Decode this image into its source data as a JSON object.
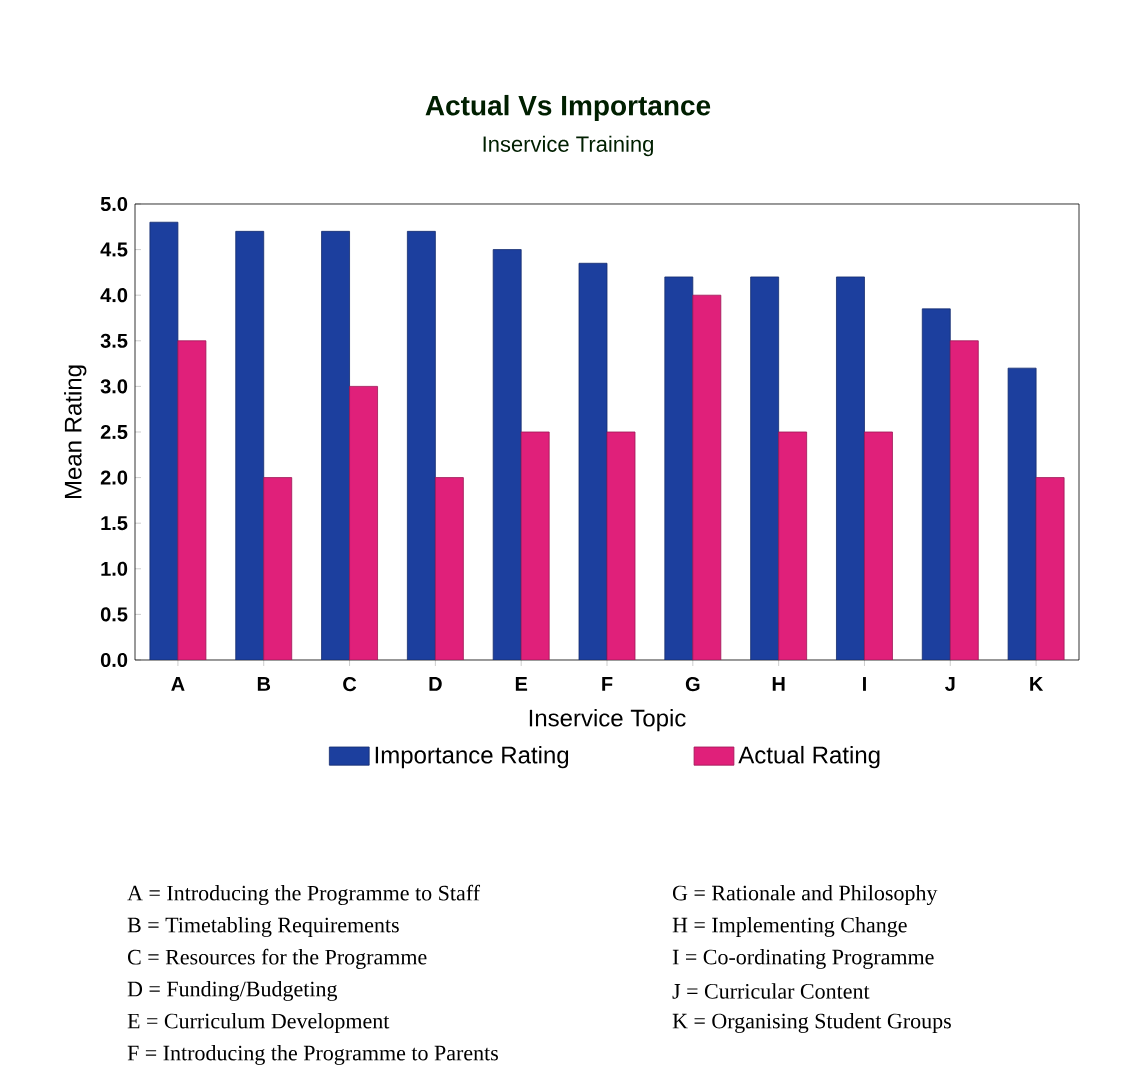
{
  "chart_data": {
    "type": "bar",
    "title": "Actual Vs Importance",
    "subtitle": "Inservice Training",
    "xlabel": "Inservice Topic",
    "ylabel": "Mean Rating",
    "categories": [
      "A",
      "B",
      "C",
      "D",
      "E",
      "F",
      "G",
      "H",
      "I",
      "J",
      "K"
    ],
    "series": [
      {
        "name": "Importance Rating",
        "color": "#1c3f9e",
        "values": [
          4.8,
          4.7,
          4.7,
          4.7,
          4.5,
          4.35,
          4.2,
          4.2,
          4.2,
          3.85,
          3.2
        ]
      },
      {
        "name": "Actual Rating",
        "color": "#e0207a",
        "values": [
          3.5,
          2.0,
          3.0,
          2.0,
          2.5,
          2.5,
          4.0,
          2.5,
          2.5,
          3.5,
          2.0
        ]
      }
    ],
    "ylim": [
      0,
      5
    ],
    "yticks": [
      {
        "value": 0,
        "label": "0.0"
      },
      {
        "value": 0.5,
        "label": "0.5"
      },
      {
        "value": 1,
        "label": "1.0"
      },
      {
        "value": 1.5,
        "label": "1.5"
      },
      {
        "value": 2,
        "label": "2.0"
      },
      {
        "value": 2.5,
        "label": "2.5"
      },
      {
        "value": 3,
        "label": "3.0"
      },
      {
        "value": 3.5,
        "label": "3.5"
      },
      {
        "value": 4,
        "label": "4.0"
      },
      {
        "value": 4.5,
        "label": "4.5"
      },
      {
        "value": 5,
        "label": "5.0"
      }
    ],
    "grid": false,
    "legend": "bottom",
    "annotations": [
      "A = Introducing the Programme to Staff",
      "B = Timetabling Requirements",
      "C = Resources for the Programme",
      "D = Funding/Budgeting",
      "E = Curriculum Development",
      "F = Introducing the Programme to Parents",
      "G = Rationale and Philosophy",
      "H = Implementing Change",
      "I = Co-ordinating Programme",
      "J = Curricular Content",
      "K = Organising Student Groups"
    ]
  }
}
